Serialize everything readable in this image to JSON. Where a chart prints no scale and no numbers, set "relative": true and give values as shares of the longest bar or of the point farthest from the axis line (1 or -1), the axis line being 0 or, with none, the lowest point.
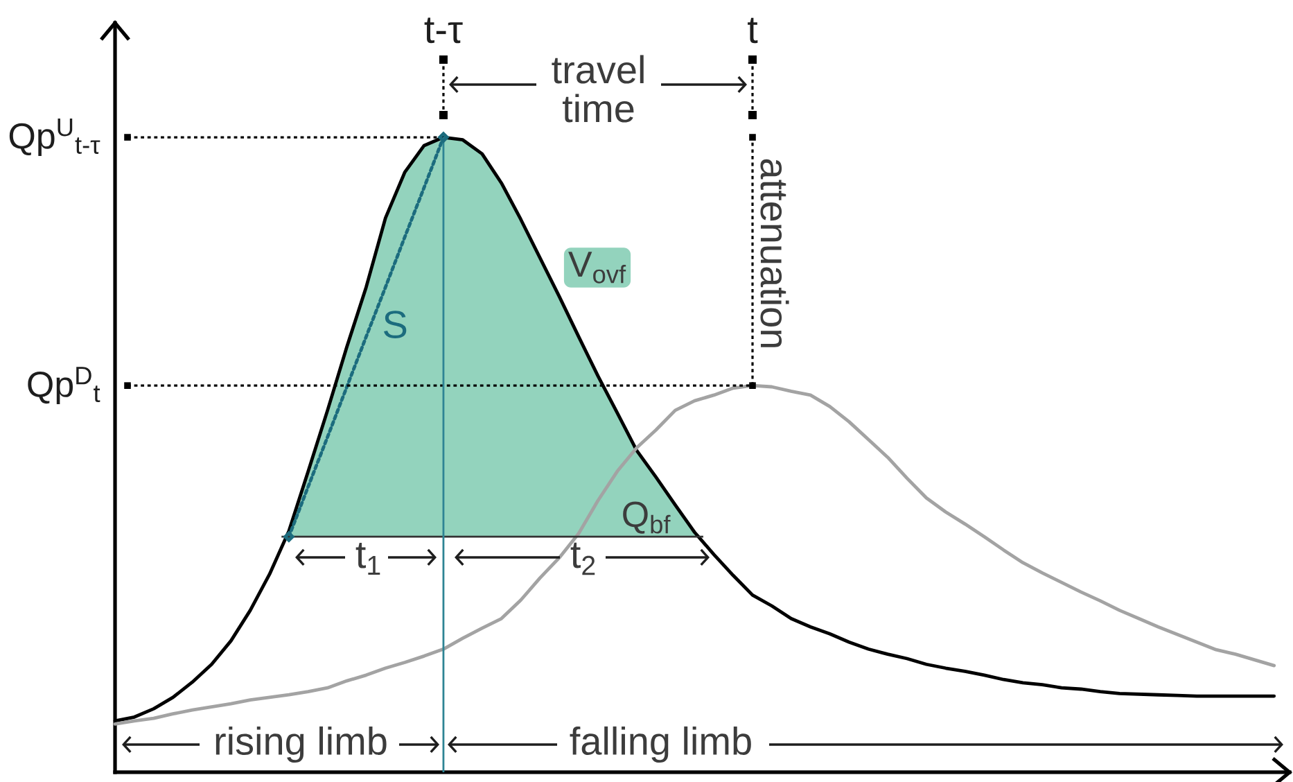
{
  "chart_data": {
    "type": "line",
    "relative": true,
    "categories": [
      null,
      null,
      null,
      null,
      null,
      null,
      null,
      null,
      null,
      null,
      null,
      null,
      null,
      null,
      null,
      null,
      null,
      "t-τ",
      null,
      null,
      null,
      null,
      null,
      null,
      null,
      null,
      null,
      null,
      null,
      null,
      null,
      null,
      null,
      "t",
      null,
      null,
      null,
      null,
      null,
      null,
      null,
      null,
      null,
      null,
      null,
      null,
      null,
      null,
      null,
      null,
      null,
      null,
      null,
      null,
      null,
      null,
      null,
      null,
      null,
      null,
      null
    ],
    "series": [
      {
        "color": "#000000",
        "values": [
          0.081,
          0.087,
          0.1,
          0.118,
          0.142,
          0.17,
          0.207,
          0.255,
          0.312,
          0.38,
          0.474,
          0.57,
          0.67,
          0.764,
          0.873,
          0.945,
          0.987,
          1,
          0.996,
          0.974,
          0.928,
          0.871,
          0.81,
          0.749,
          0.686,
          0.624,
          0.566,
          0.507,
          0.465,
          0.421,
          0.378,
          0.343,
          0.31,
          0.279,
          0.262,
          0.242,
          0.229,
          0.218,
          0.205,
          0.194,
          0.186,
          0.179,
          0.17,
          0.164,
          0.159,
          0.153,
          0.146,
          0.141,
          0.138,
          0.133,
          0.131,
          0.127,
          0.124,
          0.123,
          0.122,
          0.121,
          0.12,
          0.12,
          0.12,
          0.12,
          0.12
        ]
      },
      {
        "color": "#a3a3a3",
        "values": [
          0.076,
          0.081,
          0.085,
          0.092,
          0.098,
          0.103,
          0.108,
          0.114,
          0.118,
          0.122,
          0.127,
          0.133,
          0.144,
          0.153,
          0.164,
          0.173,
          0.183,
          0.194,
          0.211,
          0.227,
          0.242,
          0.271,
          0.306,
          0.338,
          0.376,
          0.428,
          0.474,
          0.511,
          0.539,
          0.57,
          0.585,
          0.594,
          0.605,
          0.609,
          0.607,
          0.6,
          0.594,
          0.576,
          0.552,
          0.524,
          0.496,
          0.463,
          0.432,
          0.41,
          0.391,
          0.371,
          0.35,
          0.33,
          0.314,
          0.299,
          0.284,
          0.27,
          0.255,
          0.242,
          0.229,
          0.217,
          0.205,
          0.193,
          0.186,
          0.177,
          0.168
        ]
      },
      {
        "name": "V$_{ovf}$",
        "type": "area",
        "color": "#93d3bd",
        "values": [
          null,
          null,
          null,
          null,
          null,
          null,
          null,
          null,
          null,
          0.38,
          0.474,
          0.57,
          0.67,
          0.764,
          0.873,
          0.945,
          0.987,
          1,
          0.996,
          0.974,
          0.928,
          0.871,
          0.81,
          0.749,
          0.686,
          0.624,
          0.566,
          0.507,
          0.465,
          0.421,
          0.378,
          null,
          null,
          null,
          null,
          null,
          null,
          null,
          null,
          null,
          null,
          null,
          null,
          null,
          null,
          null,
          null,
          null,
          null,
          null,
          null,
          null,
          null,
          null,
          null,
          null,
          null,
          null,
          null,
          null,
          null
        ]
      },
      {
        "name": "S",
        "color": "#1c6c7e",
        "line_style": "dotted",
        "values": [
          null,
          null,
          null,
          null,
          null,
          null,
          null,
          null,
          null,
          0.371,
          0.45,
          0.528,
          0.607,
          0.686,
          0.764,
          0.843,
          0.921,
          1,
          null,
          null,
          null,
          null,
          null,
          null,
          null,
          null,
          null,
          null,
          null,
          null,
          null,
          null,
          null,
          null,
          null,
          null,
          null,
          null,
          null,
          null,
          null,
          null,
          null,
          null,
          null,
          null,
          null,
          null,
          null,
          null,
          null,
          null,
          null,
          null,
          null,
          null,
          null,
          null,
          null,
          null,
          null
        ]
      }
    ],
    "ref_lines": [
      {
        "axis": "y",
        "value": 1,
        "label": "Qp$^{U}$$_{t-τ}$",
        "line_style": "dotted",
        "color": "#000000"
      },
      {
        "axis": "y",
        "value": 0.609,
        "label": "Qp$^{D}$$_{t}$",
        "line_style": "dotted",
        "color": "#000000"
      },
      {
        "axis": "y",
        "value": 0.371,
        "label": "Q$_{bf}$",
        "line_style": "solid",
        "color": "#333333"
      },
      {
        "axis": "x",
        "value": "t-τ",
        "line_style": "solid",
        "color": "#2e8494"
      },
      {
        "axis": "x",
        "value": "t",
        "line_style": "dotted",
        "color": "#000000"
      }
    ],
    "annotations": [
      "travel time",
      "attenuation",
      "t$_{1}$",
      "t$_{2}$",
      "rising limb",
      "falling limb"
    ]
  }
}
